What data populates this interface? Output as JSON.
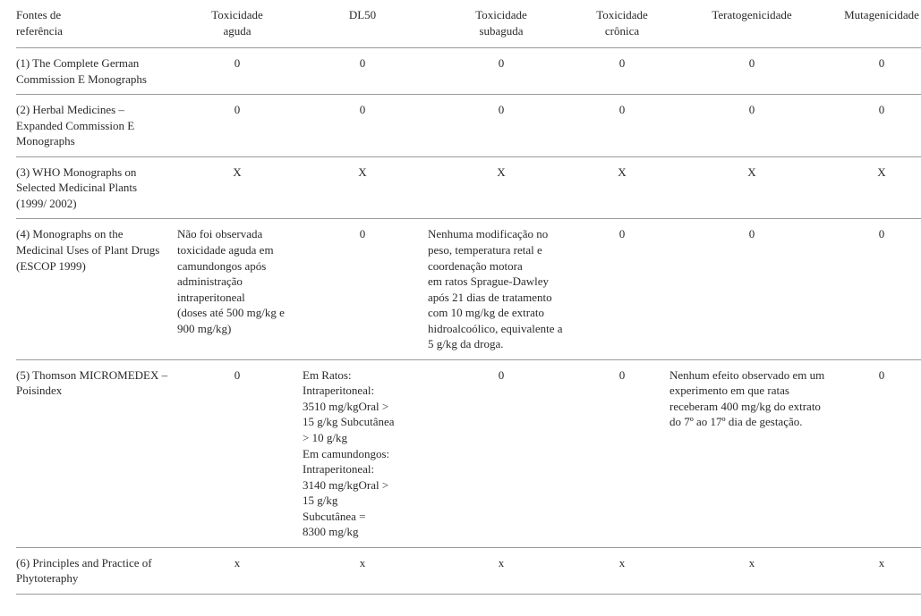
{
  "headers": {
    "ref": "Fontes de\nreferência",
    "tox_aguda": "Toxicidade\naguda",
    "dl50": "DL50",
    "tox_sub": "Toxicidade\nsubaguda",
    "tox_cron": "Toxicidade\ncrônica",
    "terato": "Teratogenicidade",
    "muta": "Mutagenicidade"
  },
  "rows": [
    {
      "ref": "(1) The Complete German Commission E Monographs",
      "tox_aguda": "0",
      "dl50": "0",
      "tox_sub": "0",
      "tox_cron": "0",
      "terato": "0",
      "muta": "0"
    },
    {
      "ref": "(2) Herbal Medicines – Expanded Commission E Monographs",
      "tox_aguda": "0",
      "dl50": "0",
      "tox_sub": "0",
      "tox_cron": "0",
      "terato": "0",
      "muta": "0"
    },
    {
      "ref": "(3) WHO Monographs on Selected Medicinal Plants (1999/ 2002)",
      "tox_aguda": "X",
      "dl50": "X",
      "tox_sub": "X",
      "tox_cron": "X",
      "terato": "X",
      "muta": "X"
    },
    {
      "ref": "(4) Monographs on the Medicinal Uses of Plant Drugs (ESCOP 1999)",
      "tox_aguda": "Não foi observada toxicidade aguda em camundongos após administração intraperitoneal\n(doses até 500 mg/kg e 900 mg/kg)",
      "dl50": "0",
      "tox_sub": "Nenhuma modificação no peso, temperatura retal e coordenação motora\nem ratos Sprague-Dawley após 21 dias de tratamento com 10 mg/kg de extrato hidroalcoólico, equivalente a 5 g/kg da droga.",
      "tox_cron": "0",
      "terato": "0",
      "muta": "0"
    },
    {
      "ref": "(5) Thomson MICROMEDEX – Poisindex",
      "tox_aguda": "0",
      "dl50": "Em Ratos:\nIntraperitoneal:\n3510 mg/kgOral >\n15 g/kg Subcutânea\n> 10 g/kg\nEm camundongos:\nIntraperitoneal:\n3140 mg/kgOral >\n15 g/kg\nSubcutânea =\n8300 mg/kg",
      "tox_sub": "0",
      "tox_cron": "0",
      "terato": "Nenhum efeito observado em um experimento em que ratas receberam 400 mg/kg do extrato do 7º ao 17º dia de gestação.",
      "muta": "0"
    },
    {
      "ref": "(6) Principles and Practice of Phytoteraphy",
      "tox_aguda": "x",
      "dl50": "x",
      "tox_sub": "x",
      "tox_cron": "x",
      "terato": "x",
      "muta": "x"
    }
  ],
  "left_align_cells": {
    "3": [
      "tox_aguda",
      "tox_sub"
    ],
    "4": [
      "dl50",
      "terato"
    ]
  }
}
